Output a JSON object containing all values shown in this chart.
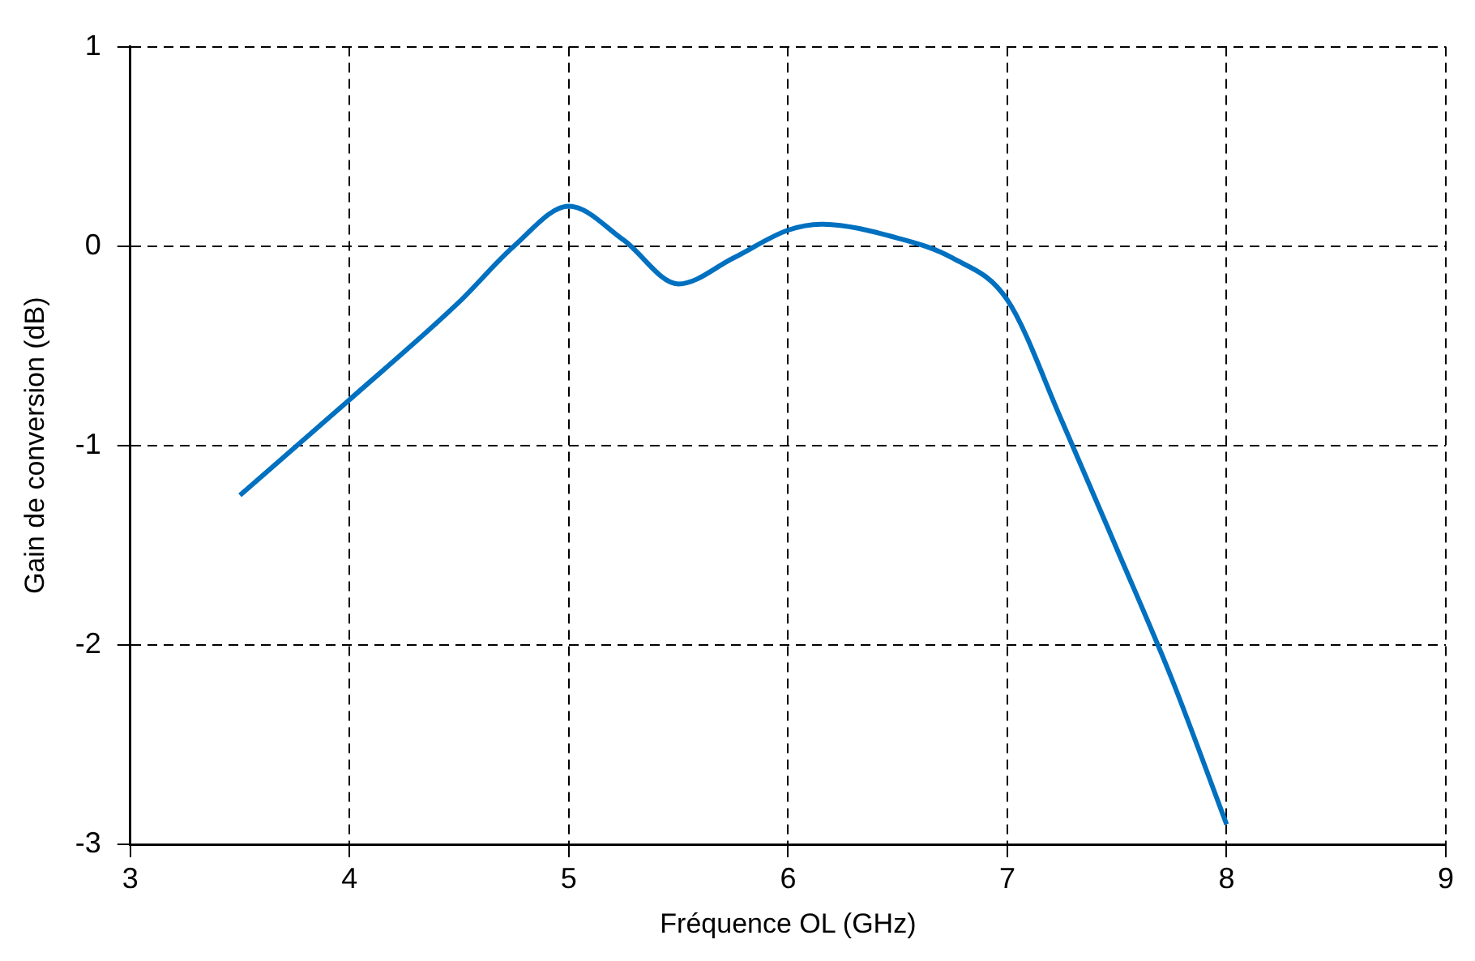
{
  "chart_data": {
    "type": "line",
    "xlabel": "Fréquence OL (GHz)",
    "ylabel": "Gain de conversion (dB)",
    "xlim": [
      3,
      9
    ],
    "xticks": [
      3,
      4,
      5,
      6,
      7,
      8,
      9
    ],
    "ylim": [
      -3,
      1
    ],
    "yticks": [
      -3,
      -2,
      -1,
      0,
      1
    ],
    "grid": true,
    "legend": false,
    "line_style": "solid",
    "marker": "none",
    "series": [
      {
        "color": "#0070c0",
        "x": [
          3.5,
          4,
          4.5,
          4.75,
          5,
          5.25,
          5.5,
          5.75,
          6,
          6.15,
          6.5,
          6.75,
          7,
          7.25,
          7.5,
          7.75,
          8
        ],
        "values": [
          -1.25,
          -0.77,
          -0.28,
          0.0,
          0.2,
          0.03,
          -0.19,
          -0.06,
          0.08,
          0.11,
          0.04,
          -0.06,
          -0.27,
          -0.88,
          -1.52,
          -2.17,
          -2.9
        ]
      }
    ]
  }
}
